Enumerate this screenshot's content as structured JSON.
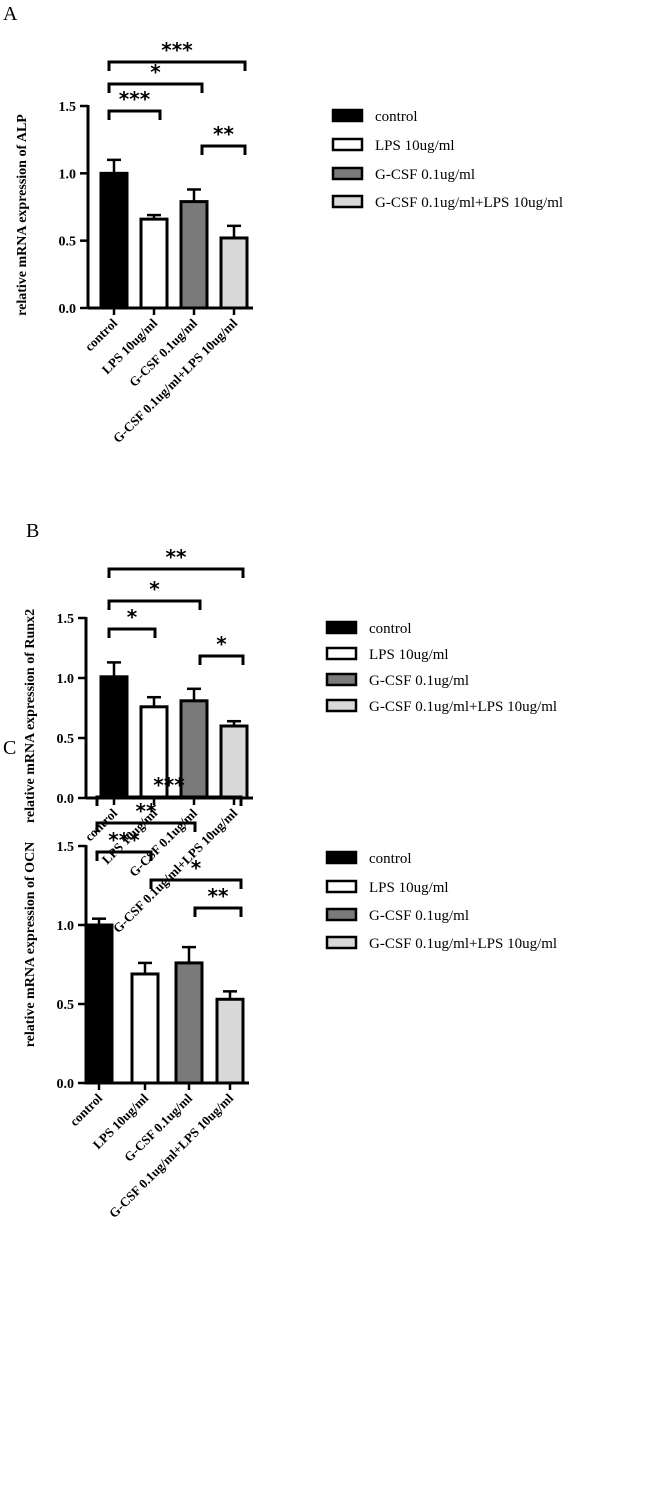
{
  "colors": {
    "control": "#000000",
    "LPS 10ug/ml": "#ffffff",
    "G-CSF 0.1ug/ml": "#7a7a7a",
    "G-CSF 0.1ug/ml+LPS 10ug/ml": "#d8d8d8"
  },
  "chart_data": [
    {
      "type": "bar",
      "panel": "A",
      "ylabel": "relative mRNA expression of ALP",
      "categories": [
        "control",
        "LPS 10ug/ml",
        "G-CSF 0.1ug/ml",
        "G-CSF 0.1ug/ml+LPS 10ug/ml"
      ],
      "values": [
        1.0,
        0.66,
        0.79,
        0.52
      ],
      "errors": [
        0.1,
        0.03,
        0.09,
        0.09
      ],
      "ylim": [
        0,
        1.5
      ],
      "yticks": [
        "0.0",
        "0.5",
        "1.0",
        "1.5"
      ],
      "legend": [
        "control",
        "LPS 10ug/ml",
        "G-CSF 0.1ug/ml",
        "G-CSF 0.1ug/ml+LPS 10ug/ml"
      ],
      "significance": [
        {
          "from": 0,
          "to": 3,
          "label": "***"
        },
        {
          "from": 0,
          "to": 2,
          "label": "*"
        },
        {
          "from": 0,
          "to": 1,
          "label": "***"
        },
        {
          "from": 2,
          "to": 3,
          "label": "**"
        }
      ]
    },
    {
      "type": "bar",
      "panel": "B",
      "ylabel": "relative mRNA expression of Runx2",
      "categories": [
        "control",
        "LPS 10ug/ml",
        "G-CSF 0.1ug/ml",
        "G-CSF 0.1ug/ml+LPS 10ug/ml"
      ],
      "values": [
        1.01,
        0.76,
        0.81,
        0.6
      ],
      "errors": [
        0.12,
        0.08,
        0.1,
        0.04
      ],
      "ylim": [
        0,
        1.5
      ],
      "yticks": [
        "0.0",
        "0.5",
        "1.0",
        "1.5"
      ],
      "legend": [
        "control",
        "LPS 10ug/ml",
        "G-CSF 0.1ug/ml",
        "G-CSF 0.1ug/ml+LPS 10ug/ml"
      ],
      "significance": [
        {
          "from": 0,
          "to": 3,
          "label": "**"
        },
        {
          "from": 0,
          "to": 2,
          "label": "*"
        },
        {
          "from": 0,
          "to": 1,
          "label": "*"
        },
        {
          "from": 2,
          "to": 3,
          "label": "*"
        }
      ]
    },
    {
      "type": "bar",
      "panel": "C",
      "ylabel": "relative mRNA expression of OCN",
      "categories": [
        "control",
        "LPS 10ug/ml",
        "G-CSF 0.1ug/ml",
        "G-CSF 0.1ug/ml+LPS 10ug/ml"
      ],
      "values": [
        1.0,
        0.69,
        0.76,
        0.53
      ],
      "errors": [
        0.04,
        0.07,
        0.1,
        0.05
      ],
      "ylim": [
        0,
        1.5
      ],
      "yticks": [
        "0.0",
        "0.5",
        "1.0",
        "1.5"
      ],
      "legend": [
        "control",
        "LPS 10ug/ml",
        "G-CSF 0.1ug/ml",
        "G-CSF 0.1ug/ml+LPS 10ug/ml"
      ],
      "significance": [
        {
          "from": 0,
          "to": 3,
          "label": "***"
        },
        {
          "from": 0,
          "to": 2,
          "label": "**"
        },
        {
          "from": 0,
          "to": 1,
          "label": "***"
        },
        {
          "from": 1,
          "to": 3,
          "label": "*"
        },
        {
          "from": 2,
          "to": 3,
          "label": "**"
        }
      ]
    }
  ]
}
